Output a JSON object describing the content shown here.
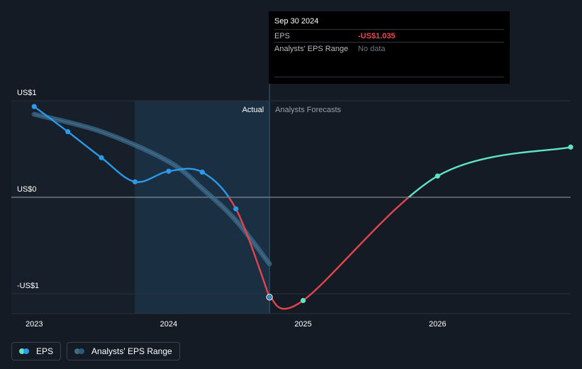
{
  "colors": {
    "eps_actual": "#2c9ae8",
    "eps_actual_neg": "#e0464f",
    "eps_forecast_pos": "#5ee3c9",
    "eps_forecast_neg": "#e0464f",
    "range_band": "#32586f",
    "range_band_light": "#9fd0ef",
    "past_region": "#1b2a3a",
    "grid": "#2b323d",
    "axis_text": "#ffffff"
  },
  "tooltip": {
    "date": "Sep 30 2024",
    "rows": [
      {
        "label": "EPS",
        "value": "-US$1.035"
      },
      {
        "label": "Analysts' EPS Range",
        "value": "No data"
      }
    ]
  },
  "region_labels": {
    "actual": "Actual",
    "forecast": "Analysts Forecasts"
  },
  "legend": [
    {
      "label": "EPS",
      "icon": "eps-legend-icon"
    },
    {
      "label": "Analysts' EPS Range",
      "icon": "range-legend-icon"
    }
  ],
  "chart_data": {
    "type": "line",
    "title": "",
    "xlabel": "",
    "ylabel": "",
    "x_ticks": [
      {
        "label": "2023",
        "x": 2023.0
      },
      {
        "label": "2024",
        "x": 2024.0
      },
      {
        "label": "2025",
        "x": 2025.0
      },
      {
        "label": "2026",
        "x": 2026.0
      }
    ],
    "y_ticks": [
      {
        "label": "US$1",
        "y": 1
      },
      {
        "label": "US$0",
        "y": 0
      },
      {
        "label": "-US$1",
        "y": -1
      }
    ],
    "xlim": [
      2022.83,
      2026.99
    ],
    "ylim": [
      -1.2,
      1.04
    ],
    "actual_end": 2024.75,
    "highlight_start": 2023.75,
    "series": [
      {
        "name": "EPS",
        "kind": "actual",
        "points": [
          [
            2023.0,
            0.94
          ],
          [
            2023.25,
            0.68
          ],
          [
            2023.5,
            0.41
          ],
          [
            2023.75,
            0.16
          ],
          [
            2024.0,
            0.27
          ],
          [
            2024.25,
            0.26
          ],
          [
            2024.5,
            -0.12
          ],
          [
            2024.75,
            -1.035
          ]
        ]
      },
      {
        "name": "EPS",
        "kind": "forecast",
        "points": [
          [
            2024.75,
            -1.035
          ],
          [
            2025.0,
            -1.07
          ],
          [
            2026.0,
            0.22
          ],
          [
            2026.99,
            0.52
          ]
        ]
      },
      {
        "name": "Analysts' EPS Range",
        "kind": "range",
        "points": [
          [
            2023.0,
            0.86
          ],
          [
            2023.5,
            0.68
          ],
          [
            2024.0,
            0.37
          ],
          [
            2024.25,
            0.09
          ],
          [
            2024.5,
            -0.24
          ],
          [
            2024.75,
            -0.69
          ]
        ]
      }
    ]
  }
}
